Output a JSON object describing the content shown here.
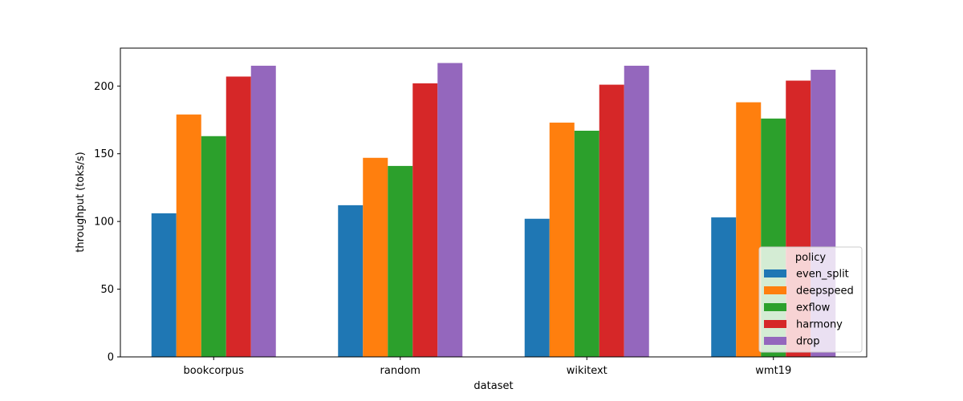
{
  "chart_data": {
    "type": "bar",
    "categories": [
      "bookcorpus",
      "random",
      "wikitext",
      "wmt19"
    ],
    "series": [
      {
        "name": "even_split",
        "color": "#1f77b4",
        "values": [
          106,
          112,
          102,
          103
        ]
      },
      {
        "name": "deepspeed",
        "color": "#ff7f0e",
        "values": [
          179,
          147,
          173,
          188
        ]
      },
      {
        "name": "exflow",
        "color": "#2ca02c",
        "values": [
          163,
          141,
          167,
          176
        ]
      },
      {
        "name": "harmony",
        "color": "#d62728",
        "values": [
          207,
          202,
          201,
          204
        ]
      },
      {
        "name": "drop",
        "color": "#9467bd",
        "values": [
          215,
          217,
          215,
          212
        ]
      }
    ],
    "title": "",
    "xlabel": "dataset",
    "ylabel": "throughput (toks/s)",
    "ylim": [
      0,
      228
    ],
    "yticks": [
      0,
      50,
      100,
      150,
      200
    ],
    "legend": {
      "title": "policy",
      "placement": "lower-right"
    },
    "grid": false
  }
}
